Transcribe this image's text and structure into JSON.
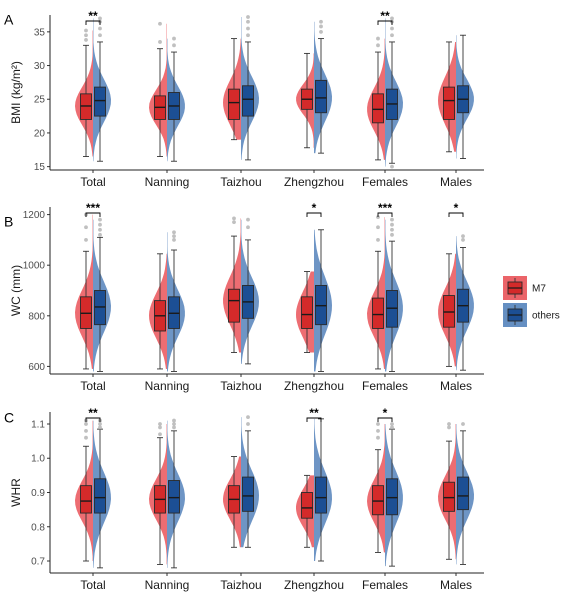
{
  "colors": {
    "M7": "#e8494f",
    "others": "#4a7bb7",
    "M7_box": "#d42a2a",
    "others_box": "#1c4f94"
  },
  "legend": {
    "items": [
      {
        "label": "M7",
        "color": "#e8494f"
      },
      {
        "label": "others",
        "color": "#4a7bb7"
      }
    ]
  },
  "chart_data": [
    {
      "type": "box",
      "panel_label": "A",
      "ylabel": "BMI (kg/m²)",
      "ylim": [
        14.5,
        37.5
      ],
      "yticks": [
        15,
        20,
        25,
        30,
        35
      ],
      "categories": [
        "Total",
        "Nanning",
        "Taizhou",
        "Zhengzhou",
        "Females",
        "Males"
      ],
      "significance": [
        "**",
        "",
        "",
        "",
        "**",
        ""
      ],
      "series": [
        {
          "name": "M7",
          "boxes": [
            {
              "min": 16.5,
              "q1": 22.0,
              "median": 24.0,
              "q3": 25.8,
              "max": 33.0,
              "outliers": [
                33.8,
                34.5,
                35.2
              ]
            },
            {
              "min": 16.5,
              "q1": 22.0,
              "median": 23.8,
              "q3": 25.5,
              "max": 32.5,
              "outliers": [
                33.5,
                36.2
              ]
            },
            {
              "min": 19.0,
              "q1": 22.0,
              "median": 24.5,
              "q3": 26.5,
              "max": 34.0,
              "outliers": []
            },
            {
              "min": 17.8,
              "q1": 23.5,
              "median": 25.0,
              "q3": 26.5,
              "max": 31.8,
              "outliers": []
            },
            {
              "min": 16.0,
              "q1": 21.5,
              "median": 23.5,
              "q3": 25.8,
              "max": 32.0,
              "outliers": [
                33.0,
                34.0
              ]
            },
            {
              "min": 17.2,
              "q1": 22.0,
              "median": 24.8,
              "q3": 26.8,
              "max": 33.5,
              "outliers": []
            }
          ]
        },
        {
          "name": "others",
          "boxes": [
            {
              "min": 15.8,
              "q1": 22.5,
              "median": 24.8,
              "q3": 26.8,
              "max": 33.5,
              "outliers": [
                34.5,
                35.5,
                36.5,
                37.0
              ]
            },
            {
              "min": 15.8,
              "q1": 22.0,
              "median": 24.0,
              "q3": 26.0,
              "max": 32.0,
              "outliers": [
                33.0,
                34.0
              ]
            },
            {
              "min": 16.0,
              "q1": 22.5,
              "median": 25.0,
              "q3": 27.0,
              "max": 33.5,
              "outliers": [
                34.5,
                35.5,
                36.5,
                37.2
              ]
            },
            {
              "min": 17.0,
              "q1": 23.0,
              "median": 25.2,
              "q3": 27.8,
              "max": 34.0,
              "outliers": [
                35.0,
                35.8,
                36.5
              ]
            },
            {
              "min": 15.5,
              "q1": 22.0,
              "median": 24.3,
              "q3": 26.5,
              "max": 33.5,
              "outliers": [
                15.0,
                34.5,
                35.5,
                36.5,
                37.0
              ]
            },
            {
              "min": 16.2,
              "q1": 23.0,
              "median": 25.0,
              "q3": 27.0,
              "max": 34.5,
              "outliers": []
            }
          ]
        }
      ]
    },
    {
      "type": "box",
      "panel_label": "B",
      "ylabel": "WC (mm)",
      "ylim": [
        570,
        1230
      ],
      "yticks": [
        600,
        800,
        1000,
        1200
      ],
      "categories": [
        "Total",
        "Nanning",
        "Taizhou",
        "Zhengzhou",
        "Females",
        "Males"
      ],
      "significance": [
        "***",
        "",
        "",
        "*",
        "***",
        "*"
      ],
      "series": [
        {
          "name": "M7",
          "boxes": [
            {
              "min": 590,
              "q1": 750,
              "median": 810,
              "q3": 875,
              "max": 1055,
              "outliers": [
                1100,
                1150,
                1200
              ]
            },
            {
              "min": 590,
              "q1": 740,
              "median": 800,
              "q3": 860,
              "max": 1045,
              "outliers": []
            },
            {
              "min": 655,
              "q1": 775,
              "median": 860,
              "q3": 905,
              "max": 1115,
              "outliers": [
                1170,
                1185
              ]
            },
            {
              "min": 655,
              "q1": 750,
              "median": 805,
              "q3": 875,
              "max": 975,
              "outliers": []
            },
            {
              "min": 590,
              "q1": 750,
              "median": 805,
              "q3": 870,
              "max": 1055,
              "outliers": [
                1100,
                1150,
                1190
              ]
            },
            {
              "min": 600,
              "q1": 755,
              "median": 815,
              "q3": 880,
              "max": 1045,
              "outliers": []
            }
          ]
        },
        {
          "name": "others",
          "boxes": [
            {
              "min": 580,
              "q1": 765,
              "median": 835,
              "q3": 900,
              "max": 1110,
              "outliers": [
                1120,
                1140,
                1160,
                1180
              ]
            },
            {
              "min": 580,
              "q1": 750,
              "median": 810,
              "q3": 875,
              "max": 1060,
              "outliers": [
                1100,
                1115,
                1130
              ]
            },
            {
              "min": 610,
              "q1": 790,
              "median": 855,
              "q3": 920,
              "max": 1100,
              "outliers": [
                1150,
                1180
              ]
            },
            {
              "min": 580,
              "q1": 765,
              "median": 840,
              "q3": 920,
              "max": 1140,
              "outliers": []
            },
            {
              "min": 580,
              "q1": 755,
              "median": 830,
              "q3": 900,
              "max": 1095,
              "outliers": [
                1120,
                1140,
                1160,
                1180
              ]
            },
            {
              "min": 585,
              "q1": 775,
              "median": 840,
              "q3": 905,
              "max": 1070,
              "outliers": [
                1100,
                1115
              ]
            }
          ]
        }
      ]
    },
    {
      "type": "box",
      "panel_label": "C",
      "ylabel": "WHR",
      "ylim": [
        0.665,
        1.135
      ],
      "yticks": [
        0.7,
        0.8,
        0.9,
        1.0,
        1.1
      ],
      "categories": [
        "Total",
        "Nanning",
        "Taizhou",
        "Zhengzhou",
        "Females",
        "Males"
      ],
      "significance": [
        "**",
        "",
        "",
        "**",
        "*",
        ""
      ],
      "series": [
        {
          "name": "M7",
          "boxes": [
            {
              "min": 0.7,
              "q1": 0.84,
              "median": 0.875,
              "q3": 0.92,
              "max": 1.035,
              "outliers": [
                1.06,
                1.08,
                1.1,
                1.11
              ]
            },
            {
              "min": 0.69,
              "q1": 0.84,
              "median": 0.88,
              "q3": 0.92,
              "max": 1.06,
              "outliers": [
                1.07,
                1.09,
                1.1
              ]
            },
            {
              "min": 0.74,
              "q1": 0.84,
              "median": 0.88,
              "q3": 0.92,
              "max": 1.005,
              "outliers": []
            },
            {
              "min": 0.74,
              "q1": 0.825,
              "median": 0.855,
              "q3": 0.9,
              "max": 0.95,
              "outliers": []
            },
            {
              "min": 0.725,
              "q1": 0.835,
              "median": 0.875,
              "q3": 0.92,
              "max": 1.025,
              "outliers": [
                1.06,
                1.08,
                1.1
              ]
            },
            {
              "min": 0.705,
              "q1": 0.845,
              "median": 0.885,
              "q3": 0.93,
              "max": 1.05,
              "outliers": [
                1.09,
                1.1
              ]
            }
          ]
        },
        {
          "name": "others",
          "boxes": [
            {
              "min": 0.68,
              "q1": 0.84,
              "median": 0.885,
              "q3": 0.94,
              "max": 1.085,
              "outliers": [
                1.09,
                1.1,
                1.11
              ]
            },
            {
              "min": 0.68,
              "q1": 0.84,
              "median": 0.885,
              "q3": 0.935,
              "max": 1.08,
              "outliers": [
                1.09,
                1.1,
                1.11
              ]
            },
            {
              "min": 0.74,
              "q1": 0.845,
              "median": 0.89,
              "q3": 0.945,
              "max": 1.08,
              "outliers": [
                1.1,
                1.12
              ]
            },
            {
              "min": 0.7,
              "q1": 0.84,
              "median": 0.885,
              "q3": 0.945,
              "max": 1.115,
              "outliers": []
            },
            {
              "min": 0.685,
              "q1": 0.835,
              "median": 0.885,
              "q3": 0.94,
              "max": 1.085,
              "outliers": [
                1.09,
                1.1
              ]
            },
            {
              "min": 0.69,
              "q1": 0.85,
              "median": 0.89,
              "q3": 0.945,
              "max": 1.08,
              "outliers": [
                1.1
              ]
            }
          ]
        }
      ]
    }
  ]
}
